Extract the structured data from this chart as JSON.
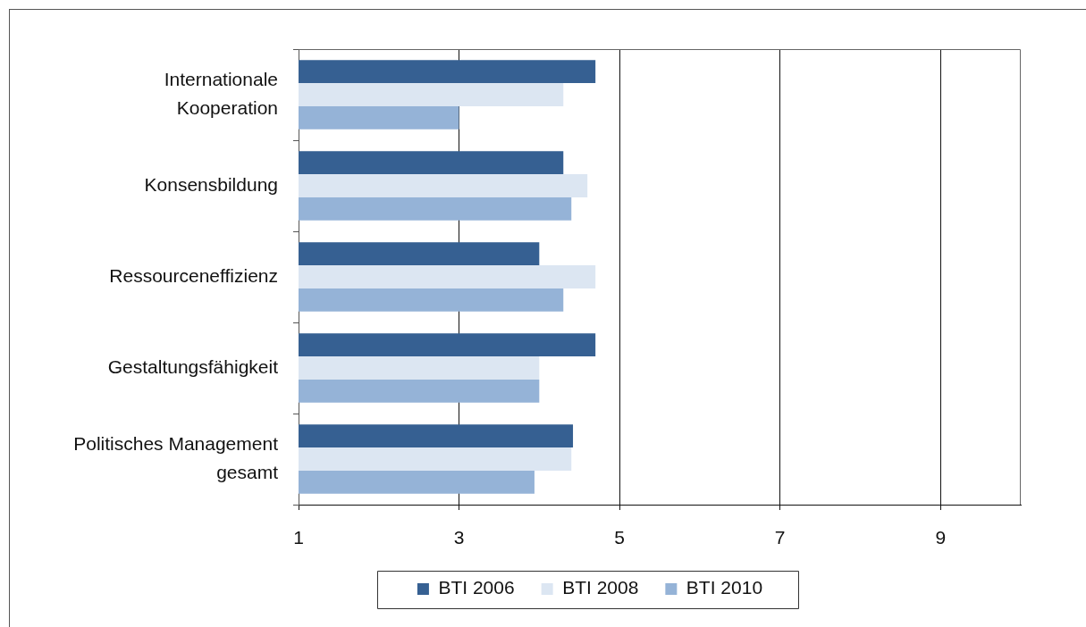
{
  "chart_data": {
    "type": "bar",
    "orientation": "horizontal",
    "categories": [
      "Internationale Kooperation",
      "Konsensbildung",
      "Ressourceneffizienz",
      "Gestaltungsfähigkeit",
      "Politisches Management gesamt"
    ],
    "series": [
      {
        "name": "BTI 2006",
        "color": "#366092",
        "values": [
          4.7,
          4.3,
          4.0,
          4.7,
          4.42
        ]
      },
      {
        "name": "BTI 2008",
        "color": "#dce6f2",
        "values": [
          4.3,
          4.6,
          4.7,
          4.0,
          4.4
        ]
      },
      {
        "name": "BTI 2010",
        "color": "#95b3d7",
        "values": [
          3.0,
          4.4,
          4.3,
          4.0,
          3.94
        ]
      }
    ],
    "xlim": [
      1,
      10
    ],
    "xticks": [
      1,
      3,
      5,
      7,
      9
    ],
    "grid": "x",
    "legend": "bottom"
  }
}
